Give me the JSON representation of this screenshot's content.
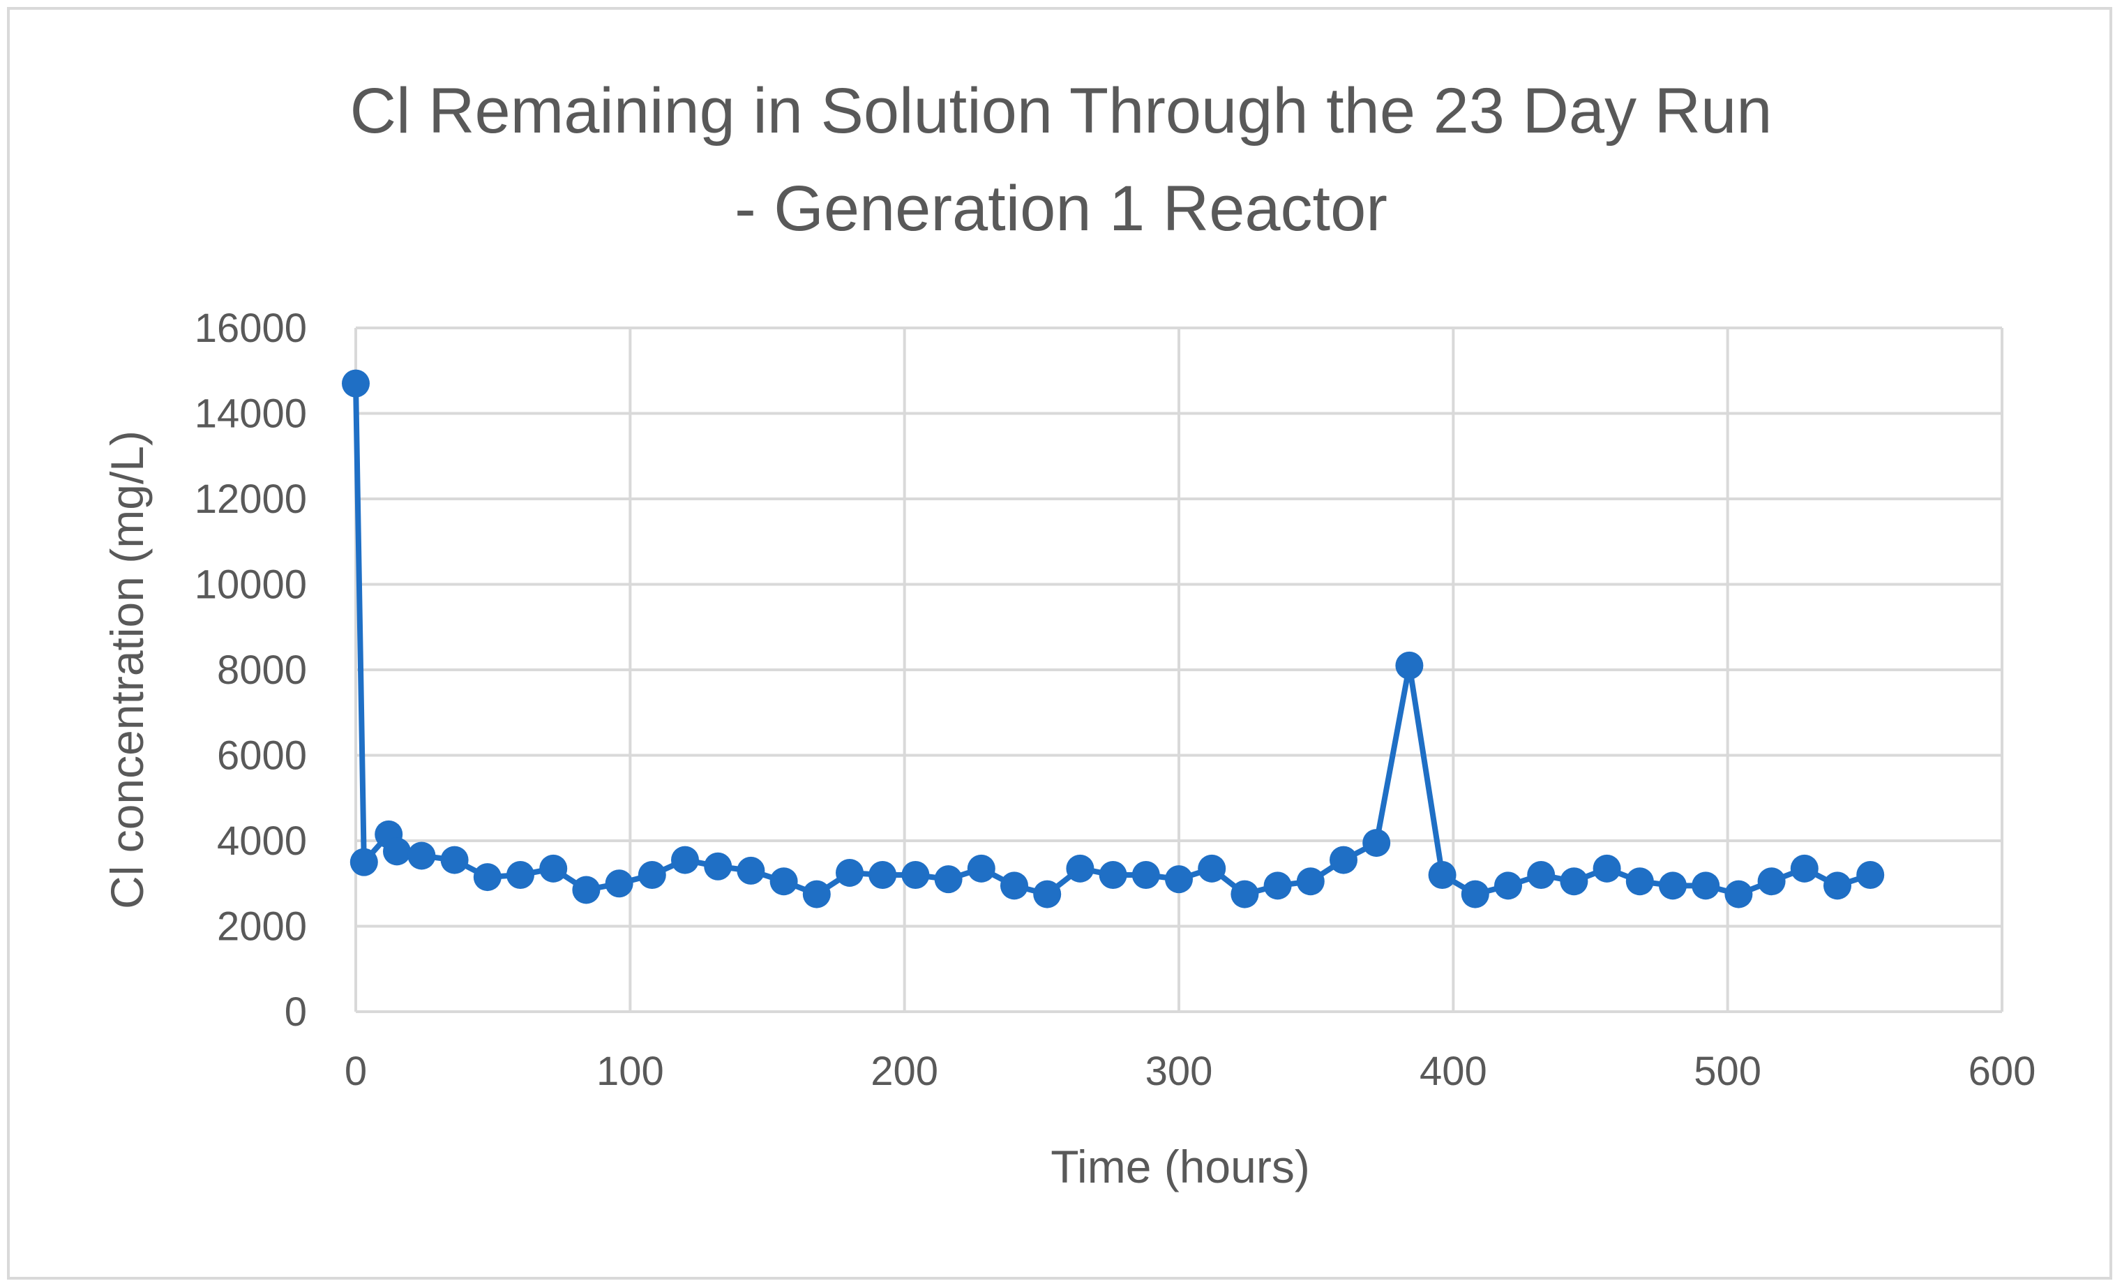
{
  "chart_data": {
    "type": "scatter",
    "title_lines": [
      "Cl Remaining in Solution Through the 23 Day Run",
      "- Generation 1 Reactor"
    ],
    "xlabel": "Time (hours)",
    "ylabel": "Cl concentration (mg/L)",
    "xlim": [
      0,
      600
    ],
    "ylim": [
      0,
      16000
    ],
    "x_ticks": [
      "0",
      "100",
      "200",
      "300",
      "400",
      "500",
      "600"
    ],
    "y_ticks": [
      "0",
      "2000",
      "4000",
      "6000",
      "8000",
      "10000",
      "12000",
      "14000",
      "16000"
    ],
    "grid": true,
    "legend": "none",
    "line_style": "straight lines with markers",
    "series": [
      {
        "color": "#1f6fc5",
        "points": [
          [
            0,
            14700
          ],
          [
            3,
            3500
          ],
          [
            12,
            4150
          ],
          [
            15,
            3750
          ],
          [
            24,
            3650
          ],
          [
            36,
            3550
          ],
          [
            48,
            3150
          ],
          [
            60,
            3200
          ],
          [
            72,
            3350
          ],
          [
            84,
            2850
          ],
          [
            96,
            3000
          ],
          [
            108,
            3200
          ],
          [
            120,
            3550
          ],
          [
            132,
            3400
          ],
          [
            144,
            3300
          ],
          [
            156,
            3050
          ],
          [
            168,
            2750
          ],
          [
            180,
            3250
          ],
          [
            192,
            3200
          ],
          [
            204,
            3200
          ],
          [
            216,
            3100
          ],
          [
            228,
            3350
          ],
          [
            240,
            2950
          ],
          [
            252,
            2750
          ],
          [
            264,
            3350
          ],
          [
            276,
            3200
          ],
          [
            288,
            3200
          ],
          [
            300,
            3100
          ],
          [
            312,
            3350
          ],
          [
            324,
            2750
          ],
          [
            336,
            2950
          ],
          [
            348,
            3050
          ],
          [
            360,
            3550
          ],
          [
            372,
            3950
          ],
          [
            384,
            8100
          ],
          [
            396,
            3200
          ],
          [
            408,
            2750
          ],
          [
            420,
            2950
          ],
          [
            432,
            3200
          ],
          [
            444,
            3050
          ],
          [
            456,
            3350
          ],
          [
            468,
            3050
          ],
          [
            480,
            2950
          ],
          [
            492,
            2950
          ],
          [
            504,
            2750
          ],
          [
            516,
            3050
          ],
          [
            528,
            3350
          ],
          [
            540,
            2950
          ],
          [
            552,
            3200
          ]
        ]
      }
    ]
  }
}
